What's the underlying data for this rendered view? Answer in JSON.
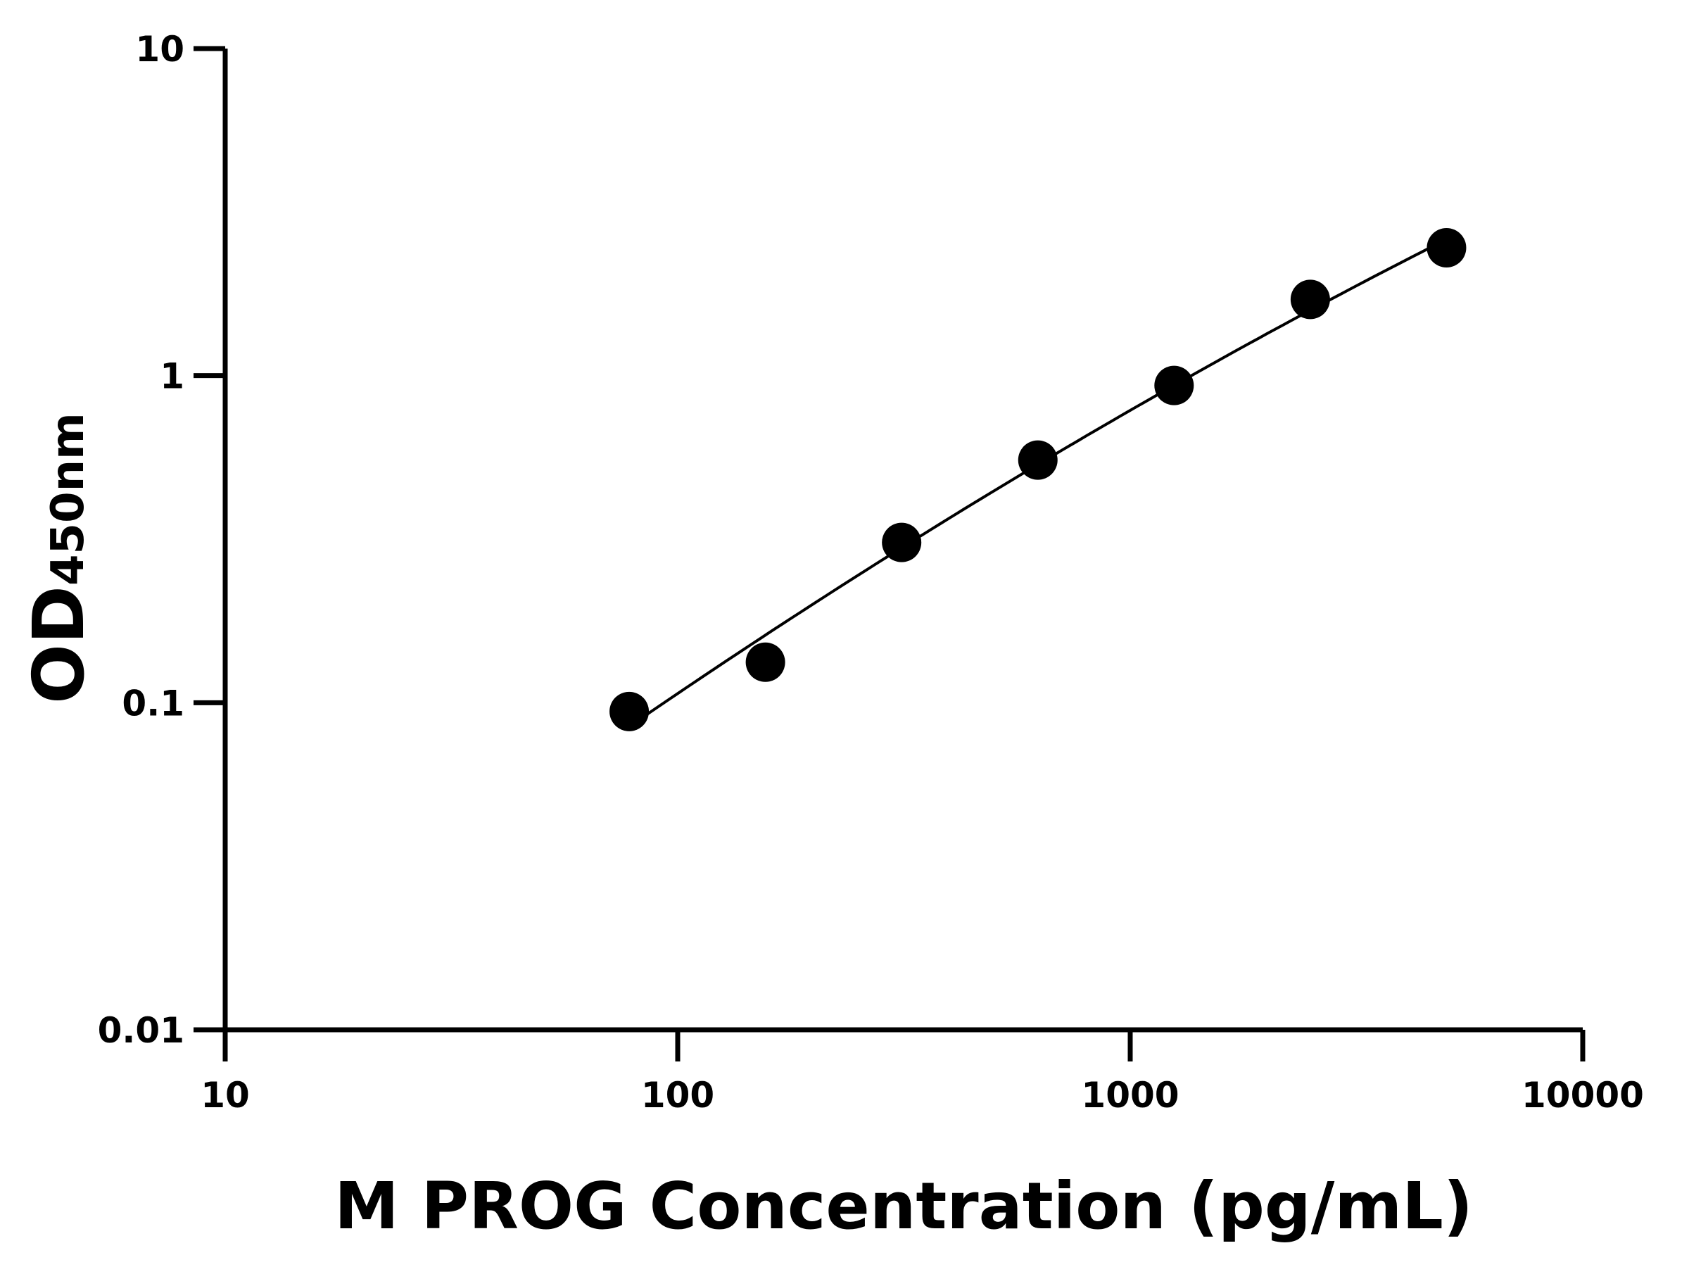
{
  "chart_data": {
    "type": "scatter",
    "title": "",
    "xlabel": "M PROG Concentration (pg/mL)",
    "ylabel_main": "OD",
    "ylabel_sub": "450nm",
    "x_scale": "log",
    "y_scale": "log",
    "xlim": [
      10,
      10000
    ],
    "ylim": [
      0.01,
      10
    ],
    "x_ticks": [
      "10",
      "100",
      "1000",
      "10000"
    ],
    "y_ticks": [
      "0.01",
      "0.1",
      "1",
      "10"
    ],
    "grid": false,
    "legend": "none",
    "fit_curve": true,
    "x": [
      78.125,
      156.25,
      312.5,
      625,
      1250,
      2500,
      5000
    ],
    "y": [
      0.094,
      0.133,
      0.309,
      0.552,
      0.933,
      1.71,
      2.46
    ],
    "colors": {
      "points": "#000000",
      "curve": "#000000",
      "axes": "#000000"
    }
  }
}
